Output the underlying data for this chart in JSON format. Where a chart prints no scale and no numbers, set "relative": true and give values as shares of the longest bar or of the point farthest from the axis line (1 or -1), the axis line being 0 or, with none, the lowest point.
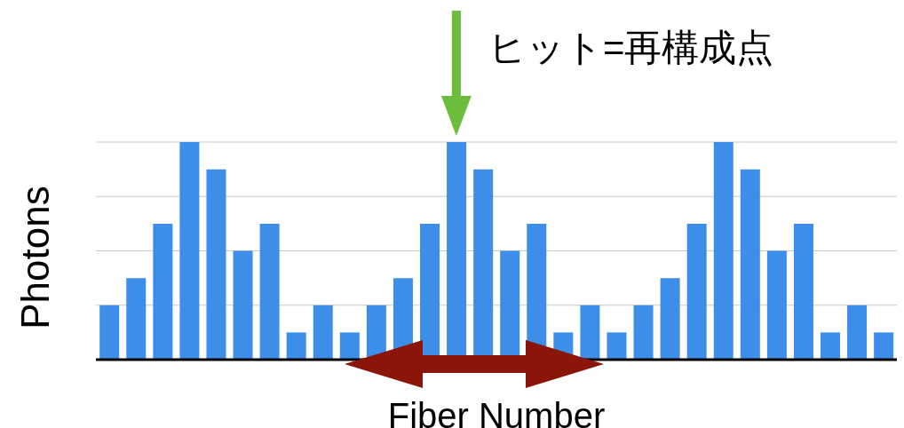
{
  "chart_data": {
    "type": "bar",
    "relative": true,
    "ylabel": "Photons",
    "xlabel": "Fiber Number",
    "annotations": [
      "ヒット=再構成点"
    ],
    "grid": "y",
    "color": "#3d8ee8",
    "categories": [
      null,
      null,
      null,
      null,
      null,
      null,
      null,
      null,
      null,
      null,
      null,
      null,
      null,
      null,
      null,
      null,
      null,
      null,
      null,
      null,
      null,
      null,
      null,
      null,
      null,
      null,
      null,
      null,
      null,
      null
    ],
    "values": [
      0.25,
      0.375,
      0.625,
      1,
      0.875,
      0.5,
      0.625,
      0.125,
      0.25,
      0.125,
      0.25,
      0.375,
      0.625,
      1,
      0.875,
      0.5,
      0.625,
      0.125,
      0.25,
      0.125,
      0.25,
      0.375,
      0.625,
      1,
      0.875,
      0.5,
      0.625,
      0.125,
      0.25,
      0.125
    ]
  }
}
